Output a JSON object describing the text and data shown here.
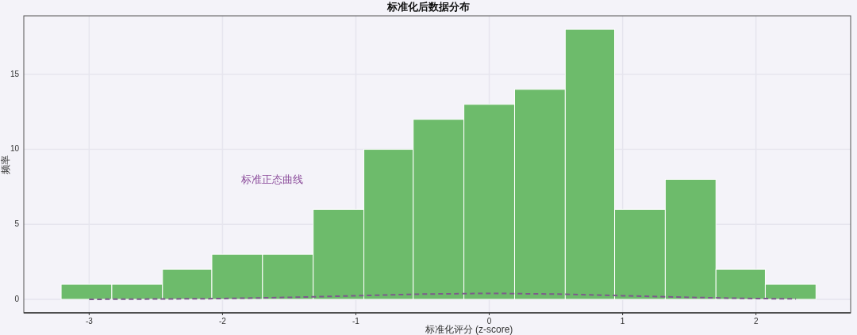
{
  "chart_data": {
    "type": "histogram",
    "title": "标准化后数据分布",
    "xlabel": "标准化评分 (z-score)",
    "ylabel": "频率",
    "bins": [
      -3.21,
      -2.83,
      -2.45,
      -2.08,
      -1.7,
      -1.32,
      -0.94,
      -0.57,
      -0.19,
      0.19,
      0.57,
      0.94,
      1.32,
      1.7,
      2.07,
      2.45
    ],
    "values": [
      1,
      1,
      2,
      3,
      3,
      6,
      10,
      12,
      13,
      14,
      18,
      6,
      8,
      2,
      1
    ],
    "color": "#6dbb6b",
    "series": [
      {
        "type": "line",
        "color": "#7d5a8c",
        "line_style": "dashed",
        "x": [
          -3,
          -2.5,
          -2,
          -1.5,
          -1,
          -0.5,
          0,
          0.5,
          1,
          1.5,
          2,
          2.3
        ],
        "values": [
          0,
          0.02,
          0.05,
          0.13,
          0.24,
          0.35,
          0.4,
          0.35,
          0.24,
          0.13,
          0.05,
          0.03
        ]
      }
    ],
    "annotations": [
      "标准正态曲线"
    ],
    "xlim": [
      -3.49,
      2.71
    ],
    "ylim": [
      -0.9,
      18.9
    ],
    "xticks": [
      -3,
      -2,
      -1,
      0,
      1,
      2
    ],
    "yticks": [
      0,
      5,
      10,
      15
    ],
    "grid": true
  }
}
